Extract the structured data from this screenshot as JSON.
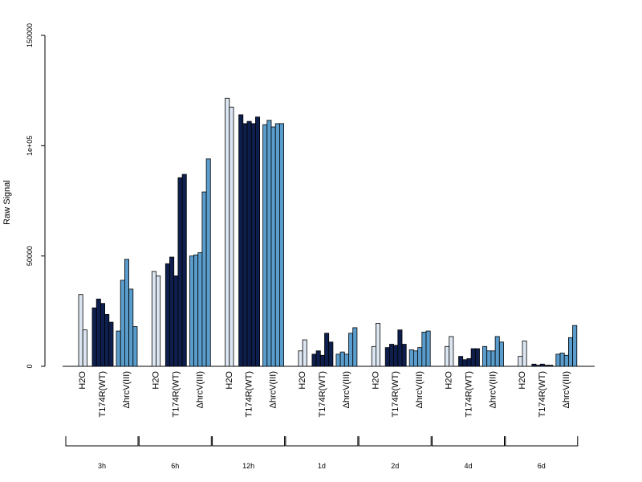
{
  "chart_data": {
    "type": "bar",
    "ylabel": "Raw Signal",
    "ylim": [
      0,
      150000
    ],
    "yticks": [
      {
        "value": 0,
        "label": "0"
      },
      {
        "value": 50000,
        "label": "50000"
      },
      {
        "value": 100000,
        "label": "1e+05"
      },
      {
        "value": 150000,
        "label": "150000"
      }
    ],
    "category_labels": [
      "H2O",
      "T174R(WT)",
      "ΔhrcV(III)"
    ],
    "colors": {
      "H2O": "#dce6f2",
      "T174R(WT)": "#0f1f4d",
      "ΔhrcV(III)": "#5a9ccc"
    },
    "groups": [
      {
        "time": "3h",
        "series": [
          {
            "name": "H2O",
            "values": [
              32500,
              16500
            ]
          },
          {
            "name": "T174R(WT)",
            "values": [
              26500,
              30500,
              28500,
              23500,
              20000
            ]
          },
          {
            "name": "ΔhrcV(III)",
            "values": [
              16000,
              39000,
              48500,
              35000,
              18000
            ]
          }
        ]
      },
      {
        "time": "6h",
        "series": [
          {
            "name": "H2O",
            "values": [
              43000,
              41000
            ]
          },
          {
            "name": "T174R(WT)",
            "values": [
              46500,
              49500,
              41000,
              85500,
              87000
            ]
          },
          {
            "name": "ΔhrcV(III)",
            "values": [
              50000,
              50500,
              51500,
              79000,
              94000
            ]
          }
        ]
      },
      {
        "time": "12h",
        "series": [
          {
            "name": "H2O",
            "values": [
              121500,
              117500
            ]
          },
          {
            "name": "T174R(WT)",
            "values": [
              114000,
              110000,
              111000,
              110000,
              113000
            ]
          },
          {
            "name": "ΔhrcV(III)",
            "values": [
              109500,
              111500,
              108500,
              110000,
              110000
            ]
          }
        ]
      },
      {
        "time": "1d",
        "series": [
          {
            "name": "H2O",
            "values": [
              7000,
              12000
            ]
          },
          {
            "name": "T174R(WT)",
            "values": [
              5500,
              7000,
              5000,
              15000,
              11000
            ]
          },
          {
            "name": "ΔhrcV(III)",
            "values": [
              5500,
              6500,
              5500,
              15000,
              17500
            ]
          }
        ]
      },
      {
        "time": "2d",
        "series": [
          {
            "name": "H2O",
            "values": [
              9000,
              19500
            ]
          },
          {
            "name": "T174R(WT)",
            "values": [
              8500,
              10000,
              9500,
              16500,
              10000
            ]
          },
          {
            "name": "ΔhrcV(III)",
            "values": [
              7500,
              7000,
              8500,
              15500,
              16000
            ]
          }
        ]
      },
      {
        "time": "4d",
        "series": [
          {
            "name": "H2O",
            "values": [
              9000,
              13500
            ]
          },
          {
            "name": "T174R(WT)",
            "values": [
              4500,
              3000,
              3500,
              8000,
              8000
            ]
          },
          {
            "name": "ΔhrcV(III)",
            "values": [
              9000,
              7000,
              7000,
              13500,
              11000
            ]
          }
        ]
      },
      {
        "time": "6d",
        "series": [
          {
            "name": "H2O",
            "values": [
              4500,
              11500
            ]
          },
          {
            "name": "T174R(WT)",
            "values": [
              1000,
              500,
              1000,
              500,
              500
            ]
          },
          {
            "name": "ΔhrcV(III)",
            "values": [
              5500,
              6000,
              5000,
              13000,
              18500
            ]
          }
        ]
      }
    ]
  }
}
